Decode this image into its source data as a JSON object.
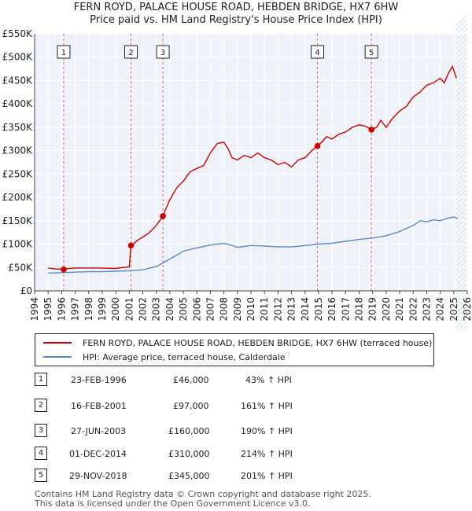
{
  "chart_data": {
    "type": "line",
    "title_line1": "FERN ROYD, PALACE HOUSE ROAD, HEBDEN BRIDGE, HX7 6HW",
    "title_line2": "Price paid vs. HM Land Registry's House Price Index (HPI)",
    "xlabel": "",
    "ylabel": "",
    "xlim": [
      1994,
      2026
    ],
    "ylim": [
      0,
      550000
    ],
    "x_ticks": [
      "1994",
      "1995",
      "1996",
      "1997",
      "1998",
      "1999",
      "2000",
      "2001",
      "2002",
      "2003",
      "2004",
      "2005",
      "2006",
      "2007",
      "2008",
      "2009",
      "2010",
      "2011",
      "2012",
      "2013",
      "2014",
      "2015",
      "2016",
      "2017",
      "2018",
      "2019",
      "2020",
      "2021",
      "2022",
      "2023",
      "2024",
      "2025",
      "2026"
    ],
    "y_ticks": [
      {
        "value": 0,
        "label": "£0"
      },
      {
        "value": 50000,
        "label": "£50K"
      },
      {
        "value": 100000,
        "label": "£100K"
      },
      {
        "value": 150000,
        "label": "£150K"
      },
      {
        "value": 200000,
        "label": "£200K"
      },
      {
        "value": 250000,
        "label": "£250K"
      },
      {
        "value": 300000,
        "label": "£300K"
      },
      {
        "value": 350000,
        "label": "£350K"
      },
      {
        "value": 400000,
        "label": "£400K"
      },
      {
        "value": 450000,
        "label": "£450K"
      },
      {
        "value": 500000,
        "label": "£500K"
      },
      {
        "value": 550000,
        "label": "£550K"
      }
    ],
    "grid": true,
    "series": [
      {
        "name": "FERN ROYD, PALACE HOUSE ROAD, HEBDEN BRIDGE, HX7 6HW (terraced house)",
        "color": "#cc0000",
        "x": [
          1995.0,
          1995.5,
          1996.15,
          1996.5,
          1997.0,
          1998.0,
          1999.0,
          2000.0,
          2000.5,
          2001.0,
          2001.13,
          2001.3,
          2001.6,
          2002.0,
          2002.5,
          2003.0,
          2003.49,
          2003.7,
          2004.0,
          2004.5,
          2005.0,
          2005.5,
          2006.0,
          2006.5,
          2007.0,
          2007.5,
          2008.0,
          2008.3,
          2008.6,
          2009.0,
          2009.5,
          2010.0,
          2010.5,
          2011.0,
          2011.5,
          2012.0,
          2012.5,
          2013.0,
          2013.5,
          2014.0,
          2014.5,
          2014.92,
          2015.3,
          2015.6,
          2016.0,
          2016.5,
          2017.0,
          2017.5,
          2018.0,
          2018.5,
          2018.91,
          2019.3,
          2019.6,
          2020.0,
          2020.5,
          2021.0,
          2021.5,
          2022.0,
          2022.5,
          2023.0,
          2023.5,
          2024.0,
          2024.3,
          2024.6,
          2024.9,
          2025.2
        ],
        "values": [
          49000,
          47000,
          46000,
          48000,
          49000,
          49000,
          49000,
          48000,
          50000,
          51000,
          97000,
          100000,
          108000,
          115000,
          125000,
          140000,
          160000,
          175000,
          195000,
          220000,
          235000,
          255000,
          262000,
          268000,
          295000,
          315000,
          318000,
          305000,
          285000,
          280000,
          290000,
          285000,
          295000,
          285000,
          280000,
          270000,
          275000,
          265000,
          280000,
          285000,
          300000,
          310000,
          320000,
          330000,
          325000,
          335000,
          340000,
          350000,
          355000,
          352000,
          345000,
          350000,
          365000,
          350000,
          370000,
          385000,
          395000,
          415000,
          425000,
          440000,
          445000,
          455000,
          445000,
          465000,
          480000,
          455000
        ]
      },
      {
        "name": "HPI: Average price, terraced house, Calderdale",
        "color": "#5a8ac6",
        "x": [
          1995.0,
          1996.0,
          1997.0,
          1998.0,
          1999.0,
          2000.0,
          2001.0,
          2002.0,
          2003.0,
          2004.0,
          2005.0,
          2006.0,
          2007.0,
          2007.5,
          2008.0,
          2008.5,
          2009.0,
          2009.5,
          2010.0,
          2011.0,
          2012.0,
          2013.0,
          2014.0,
          2015.0,
          2016.0,
          2017.0,
          2018.0,
          2019.0,
          2020.0,
          2021.0,
          2022.0,
          2022.5,
          2023.0,
          2023.5,
          2024.0,
          2024.5,
          2025.0,
          2025.3
        ],
        "values": [
          38000,
          39000,
          40000,
          41000,
          41000,
          42000,
          43000,
          45000,
          52000,
          68000,
          85000,
          92000,
          98000,
          100000,
          102000,
          98000,
          93000,
          95000,
          97000,
          96000,
          94000,
          94000,
          97000,
          100000,
          102000,
          106000,
          110000,
          113000,
          118000,
          127000,
          140000,
          150000,
          148000,
          152000,
          150000,
          155000,
          158000,
          155000
        ]
      }
    ],
    "sale_markers": [
      {
        "num": "1",
        "x": 1996.15,
        "y": 46000
      },
      {
        "num": "2",
        "x": 2001.13,
        "y": 97000
      },
      {
        "num": "3",
        "x": 2003.49,
        "y": 160000
      },
      {
        "num": "4",
        "x": 2014.92,
        "y": 310000
      },
      {
        "num": "5",
        "x": 2018.91,
        "y": 345000
      }
    ]
  },
  "legend": {
    "property_label": "FERN ROYD, PALACE HOUSE ROAD, HEBDEN BRIDGE, HX7 6HW (terraced house)",
    "hpi_label": "HPI: Average price, terraced house, Calderdale",
    "property_color": "#cc0000",
    "hpi_color": "#5a8ac6"
  },
  "transactions": [
    {
      "num": "1",
      "date": "23-FEB-1996",
      "price": "£46,000",
      "hpi": "43% ↑ HPI"
    },
    {
      "num": "2",
      "date": "16-FEB-2001",
      "price": "£97,000",
      "hpi": "161% ↑ HPI"
    },
    {
      "num": "3",
      "date": "27-JUN-2003",
      "price": "£160,000",
      "hpi": "190% ↑ HPI"
    },
    {
      "num": "4",
      "date": "01-DEC-2014",
      "price": "£310,000",
      "hpi": "214% ↑ HPI"
    },
    {
      "num": "5",
      "date": "29-NOV-2018",
      "price": "£345,000",
      "hpi": "201% ↑ HPI"
    }
  ],
  "footer": {
    "line1": "Contains HM Land Registry data © Crown copyright and database right 2025.",
    "line2": "This data is licensed under the Open Government Licence v3.0."
  }
}
